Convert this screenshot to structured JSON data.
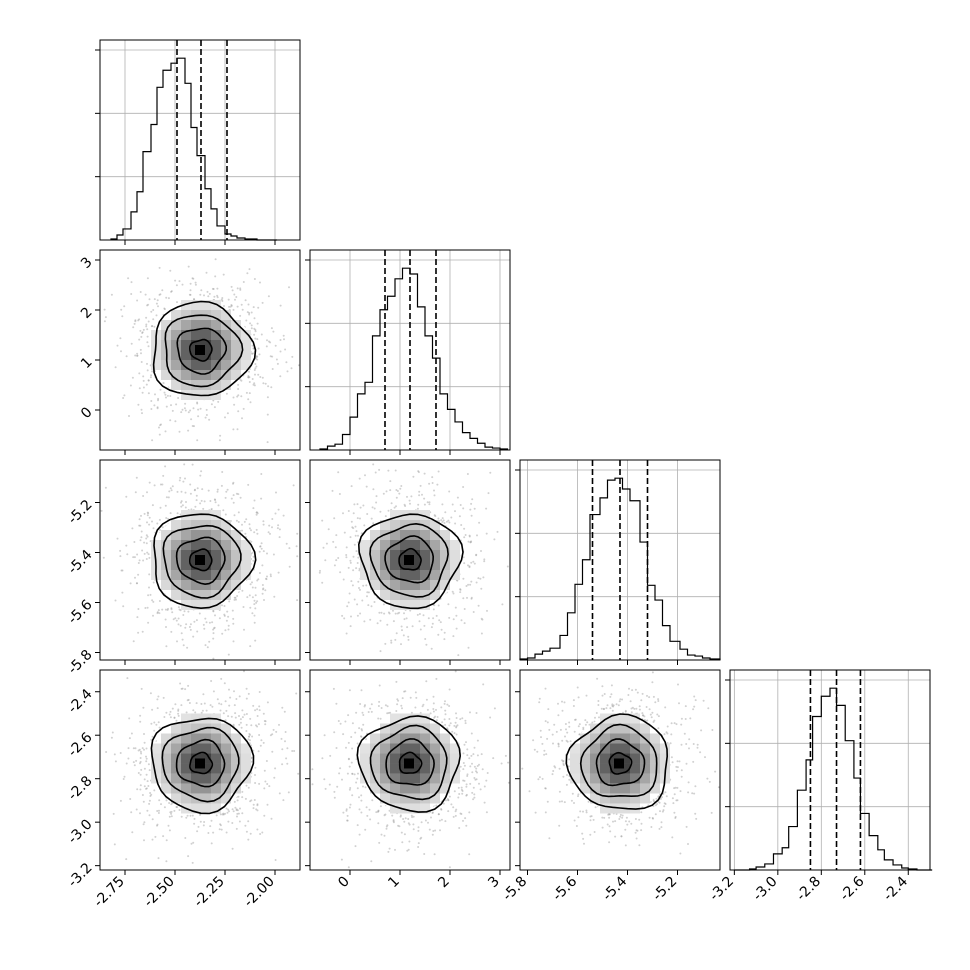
{
  "chart_data": {
    "type": "corner",
    "grid": true,
    "quantile_lines": [
      0.16,
      0.5,
      0.84
    ],
    "parameters": [
      {
        "index": 0,
        "range": [
          -2.875,
          -1.875
        ],
        "ticks": [
          "-2.75",
          "-2.50",
          "-2.25",
          "-2.00"
        ],
        "tick_values": [
          -2.75,
          -2.5,
          -2.25,
          -2.0
        ],
        "quantiles": [
          -2.49,
          -2.37,
          -2.24
        ],
        "hist_bins": [
          -2.82,
          -2.79,
          -2.76,
          -2.72,
          -2.69,
          -2.66,
          -2.62,
          -2.59,
          -2.56,
          -2.52,
          -2.49,
          -2.45,
          -2.42,
          -2.39,
          -2.35,
          -2.32,
          -2.29,
          -2.25,
          -2.22,
          -2.19,
          -2.15,
          -2.12,
          -2.09,
          -2.05,
          -2.02,
          -1.99
        ],
        "hist_counts": [
          1,
          5,
          11,
          28,
          48,
          88,
          115,
          152,
          169,
          176,
          181,
          156,
          112,
          84,
          51,
          31,
          14,
          6,
          4,
          2,
          1,
          1,
          0,
          0,
          0
        ]
      },
      {
        "index": 1,
        "range": [
          -0.8,
          3.2
        ],
        "ticks": [
          "0",
          "1",
          "2",
          "3"
        ],
        "tick_values": [
          0,
          1,
          2,
          3
        ],
        "quantiles": [
          0.7,
          1.2,
          1.72
        ],
        "hist_bins": [
          -0.6,
          -0.45,
          -0.3,
          -0.15,
          0.0,
          0.15,
          0.3,
          0.45,
          0.6,
          0.75,
          0.9,
          1.05,
          1.2,
          1.35,
          1.5,
          1.65,
          1.8,
          1.95,
          2.1,
          2.25,
          2.4,
          2.55,
          2.7,
          2.85,
          3.0,
          3.15
        ],
        "hist_counts": [
          1,
          4,
          6,
          16,
          34,
          58,
          70,
          118,
          145,
          159,
          177,
          188,
          182,
          148,
          118,
          95,
          58,
          42,
          29,
          18,
          12,
          7,
          3,
          2,
          1
        ]
      },
      {
        "index": 2,
        "range": [
          -5.83,
          -5.03
        ],
        "ticks": [
          "-5.8",
          "-5.6",
          "-5.4",
          "-5.2"
        ],
        "tick_values": [
          -5.8,
          -5.6,
          -5.4,
          -5.2
        ],
        "quantiles": [
          -5.54,
          -5.43,
          -5.32
        ],
        "hist_bins": [
          -5.83,
          -5.8,
          -5.77,
          -5.74,
          -5.71,
          -5.67,
          -5.64,
          -5.61,
          -5.58,
          -5.55,
          -5.51,
          -5.48,
          -5.45,
          -5.42,
          -5.39,
          -5.35,
          -5.32,
          -5.29,
          -5.26,
          -5.23,
          -5.19,
          -5.16,
          -5.13,
          -5.1,
          -5.07,
          -5.03
        ],
        "hist_counts": [
          1,
          2,
          6,
          9,
          12,
          25,
          48,
          77,
          102,
          148,
          165,
          183,
          185,
          174,
          162,
          120,
          76,
          61,
          35,
          19,
          11,
          5,
          4,
          2,
          1
        ]
      },
      {
        "index": 3,
        "range": [
          -3.22,
          -2.3
        ],
        "ticks": [
          "-3.2",
          "-3.0",
          "-2.8",
          "-2.6",
          "-2.4"
        ],
        "tick_values": [
          -3.2,
          -3.0,
          -2.8,
          -2.6,
          -2.4
        ],
        "quantiles": [
          -2.85,
          -2.73,
          -2.62
        ],
        "hist_bins": [
          -3.2,
          -3.17,
          -3.13,
          -3.1,
          -3.06,
          -3.02,
          -2.98,
          -2.95,
          -2.91,
          -2.87,
          -2.84,
          -2.8,
          -2.76,
          -2.73,
          -2.69,
          -2.65,
          -2.62,
          -2.58,
          -2.54,
          -2.51,
          -2.47,
          -2.43,
          -2.4,
          -2.36,
          -2.32,
          -2.29
        ],
        "hist_counts": [
          0,
          0,
          1,
          3,
          6,
          16,
          22,
          43,
          79,
          109,
          152,
          172,
          180,
          163,
          128,
          91,
          56,
          34,
          20,
          10,
          5,
          2,
          1,
          0,
          0
        ]
      }
    ],
    "pairs": [
      {
        "row": 1,
        "col": 0,
        "mean": [
          -2.37,
          1.2
        ]
      },
      {
        "row": 2,
        "col": 0,
        "mean": [
          -2.37,
          -5.43
        ]
      },
      {
        "row": 2,
        "col": 1,
        "mean": [
          1.2,
          -5.43
        ]
      },
      {
        "row": 3,
        "col": 0,
        "mean": [
          -2.37,
          -2.73
        ]
      },
      {
        "row": 3,
        "col": 1,
        "mean": [
          1.2,
          -2.73
        ]
      },
      {
        "row": 3,
        "col": 2,
        "mean": [
          -5.43,
          -2.73
        ]
      }
    ]
  }
}
